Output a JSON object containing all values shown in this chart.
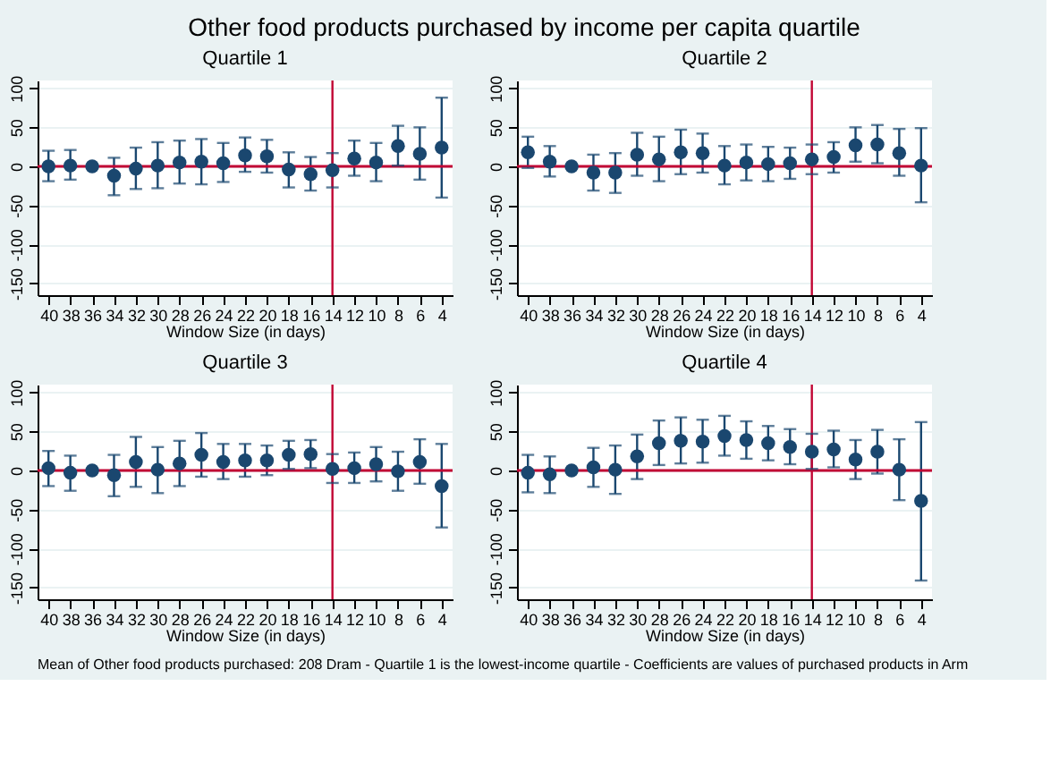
{
  "chart_data": [
    {
      "type": "scatter",
      "title": "Quartile 1",
      "annotations": [
        "Other food products purchased by income per capita quartile"
      ],
      "xlabel": "Window Size (in days)",
      "x": [
        40,
        38,
        36,
        34,
        32,
        30,
        28,
        26,
        24,
        22,
        20,
        18,
        16,
        14,
        12,
        10,
        8,
        6,
        4
      ],
      "xlim": [
        41,
        3
      ],
      "xticks": [
        40,
        38,
        36,
        34,
        32,
        30,
        28,
        26,
        24,
        22,
        20,
        18,
        16,
        14,
        12,
        10,
        8,
        6,
        4
      ],
      "ylim": [
        -165,
        110
      ],
      "yticks": [
        -150,
        -100,
        -50,
        0,
        50,
        100
      ],
      "grid": "y",
      "marker": "circle",
      "color": "#1a476f",
      "values": [
        0,
        1,
        0,
        -12,
        -3,
        1,
        5,
        6,
        4,
        14,
        13,
        -4,
        -10,
        -5,
        10,
        5,
        26,
        16,
        24
      ],
      "errors": [
        [
          -19,
          20
        ],
        [
          -17,
          21
        ],
        null,
        [
          -37,
          11
        ],
        [
          -29,
          24
        ],
        [
          -28,
          31
        ],
        [
          -22,
          33
        ],
        [
          -23,
          35
        ],
        [
          -20,
          30
        ],
        [
          -7,
          37
        ],
        [
          -8,
          34
        ],
        [
          -27,
          18
        ],
        [
          -31,
          12
        ],
        [
          -27,
          17
        ],
        [
          -12,
          33
        ],
        [
          -19,
          30
        ],
        [
          1,
          52
        ],
        [
          -17,
          50
        ],
        [
          -40,
          88
        ]
      ],
      "ref_lines": [
        {
          "axis": "x",
          "value": 14,
          "color": "#c10534"
        },
        {
          "axis": "y",
          "value": 0,
          "color": "#c10534"
        }
      ]
    },
    {
      "type": "scatter",
      "title": "Quartile 2",
      "xlabel": "Window Size (in days)",
      "x": [
        40,
        38,
        36,
        34,
        32,
        30,
        28,
        26,
        24,
        22,
        20,
        18,
        16,
        14,
        12,
        10,
        8,
        6,
        4
      ],
      "xlim": [
        41,
        3
      ],
      "xticks": [
        40,
        38,
        36,
        34,
        32,
        30,
        28,
        26,
        24,
        22,
        20,
        18,
        16,
        14,
        12,
        10,
        8,
        6,
        4
      ],
      "ylim": [
        -165,
        110
      ],
      "yticks": [
        -150,
        -100,
        -50,
        0,
        50,
        100
      ],
      "grid": "y",
      "marker": "circle",
      "color": "#1a476f",
      "values": [
        18,
        6,
        0,
        -8,
        -8,
        15,
        9,
        18,
        17,
        1,
        5,
        3,
        4,
        9,
        12,
        27,
        28,
        17,
        1
      ],
      "errors": [
        [
          -2,
          38
        ],
        [
          -13,
          26
        ],
        null,
        [
          -31,
          15
        ],
        [
          -34,
          17
        ],
        [
          -12,
          43
        ],
        [
          -19,
          38
        ],
        [
          -10,
          47
        ],
        [
          -8,
          42
        ],
        [
          -23,
          26
        ],
        [
          -18,
          28
        ],
        [
          -19,
          25
        ],
        [
          -16,
          24
        ],
        [
          -10,
          28
        ],
        [
          -8,
          31
        ],
        [
          6,
          50
        ],
        [
          4,
          53
        ],
        [
          -12,
          48
        ],
        [
          -46,
          49
        ]
      ],
      "ref_lines": [
        {
          "axis": "x",
          "value": 14,
          "color": "#c10534"
        },
        {
          "axis": "y",
          "value": 0,
          "color": "#c10534"
        }
      ]
    },
    {
      "type": "scatter",
      "title": "Quartile 3",
      "xlabel": "Window Size (in days)",
      "x": [
        40,
        38,
        36,
        34,
        32,
        30,
        28,
        26,
        24,
        22,
        20,
        18,
        16,
        14,
        12,
        10,
        8,
        6,
        4
      ],
      "xlim": [
        41,
        3
      ],
      "xticks": [
        40,
        38,
        36,
        34,
        32,
        30,
        28,
        26,
        24,
        22,
        20,
        18,
        16,
        14,
        12,
        10,
        8,
        6,
        4
      ],
      "ylim": [
        -165,
        110
      ],
      "yticks": [
        -150,
        -100,
        -50,
        0,
        50,
        100
      ],
      "grid": "y",
      "marker": "circle",
      "color": "#1a476f",
      "values": [
        3,
        -3,
        0,
        -6,
        11,
        1,
        9,
        20,
        11,
        13,
        13,
        20,
        21,
        2,
        3,
        8,
        -1,
        11,
        -20
      ],
      "errors": [
        [
          -20,
          25
        ],
        [
          -26,
          19
        ],
        null,
        [
          -33,
          20
        ],
        [
          -21,
          43
        ],
        [
          -29,
          30
        ],
        [
          -20,
          38
        ],
        [
          -8,
          48
        ],
        [
          -11,
          34
        ],
        [
          -8,
          34
        ],
        [
          -6,
          32
        ],
        [
          2,
          38
        ],
        [
          3,
          39
        ],
        [
          -16,
          21
        ],
        [
          -16,
          23
        ],
        [
          -14,
          30
        ],
        [
          -26,
          24
        ],
        [
          -17,
          40
        ],
        [
          -73,
          34
        ]
      ],
      "ref_lines": [
        {
          "axis": "x",
          "value": 14,
          "color": "#c10534"
        },
        {
          "axis": "y",
          "value": 0,
          "color": "#c10534"
        }
      ]
    },
    {
      "type": "scatter",
      "title": "Quartile 4",
      "annotations": [
        "Mean of Other food products purchased: 208 Dram - Quartile 1 is the lowest-income quartile - Coefficients are values of purchased products in Arm"
      ],
      "xlabel": "Window Size (in days)",
      "x": [
        40,
        38,
        36,
        34,
        32,
        30,
        28,
        26,
        24,
        22,
        20,
        18,
        16,
        14,
        12,
        10,
        8,
        6,
        4
      ],
      "xlim": [
        41,
        3
      ],
      "xticks": [
        40,
        38,
        36,
        34,
        32,
        30,
        28,
        26,
        24,
        22,
        20,
        18,
        16,
        14,
        12,
        10,
        8,
        6,
        4
      ],
      "ylim": [
        -165,
        110
      ],
      "yticks": [
        -150,
        -100,
        -50,
        0,
        50,
        100
      ],
      "grid": "y",
      "marker": "circle",
      "color": "#1a476f",
      "values": [
        -3,
        -5,
        0,
        4,
        1,
        18,
        35,
        38,
        37,
        44,
        39,
        35,
        30,
        24,
        27,
        14,
        24,
        1,
        -39
      ],
      "errors": [
        [
          -28,
          20
        ],
        [
          -29,
          18
        ],
        null,
        [
          -21,
          29
        ],
        [
          -30,
          32
        ],
        [
          -11,
          46
        ],
        [
          7,
          64
        ],
        [
          9,
          68
        ],
        [
          10,
          65
        ],
        [
          19,
          70
        ],
        [
          15,
          63
        ],
        [
          13,
          57
        ],
        [
          8,
          53
        ],
        [
          2,
          47
        ],
        [
          4,
          51
        ],
        [
          -11,
          39
        ],
        [
          -4,
          52
        ],
        [
          -38,
          40
        ],
        [
          -141,
          62
        ]
      ],
      "ref_lines": [
        {
          "axis": "x",
          "value": 14,
          "color": "#c10534"
        },
        {
          "axis": "y",
          "value": 0,
          "color": "#c10534"
        }
      ]
    }
  ]
}
